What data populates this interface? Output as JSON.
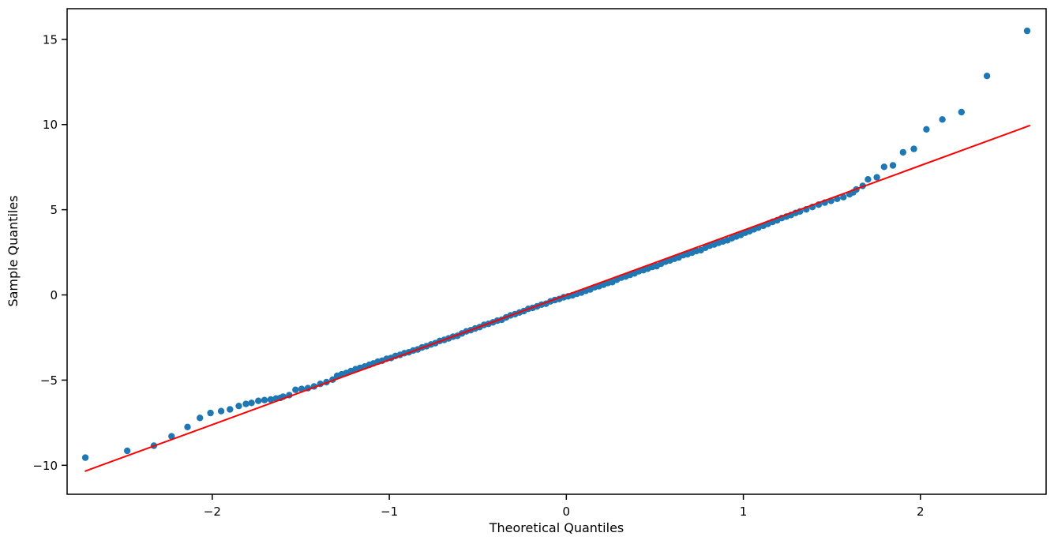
{
  "figure": {
    "background": "#ffffff",
    "border_color": "#000000",
    "text_color": "#000000"
  },
  "chart_data": {
    "type": "scatter",
    "title": "",
    "xlabel": "Theoretical Quantiles",
    "ylabel": "Sample Quantiles",
    "xlim": [
      -2.82,
      2.71
    ],
    "ylim": [
      -11.7,
      16.8
    ],
    "xticks": [
      -2,
      -1,
      0,
      1,
      2
    ],
    "yticks": [
      -10,
      -5,
      0,
      5,
      10,
      15
    ],
    "grid": false,
    "legend_position": "none",
    "series": [
      {
        "name": "sample-quantile-points",
        "kind": "scatter",
        "color": "#1f77b4",
        "marker_radius": 4.2,
        "points": [
          [
            -2.717,
            -9.55
          ],
          [
            -2.48,
            -9.15
          ],
          [
            -2.33,
            -8.85
          ],
          [
            -2.23,
            -8.3
          ],
          [
            -2.14,
            -7.75
          ],
          [
            -2.07,
            -7.22
          ],
          [
            -2.01,
            -6.93
          ],
          [
            -1.95,
            -6.82
          ],
          [
            -1.9,
            -6.72
          ],
          [
            -1.85,
            -6.52
          ],
          [
            -1.81,
            -6.4
          ],
          [
            -1.778,
            -6.34
          ],
          [
            -1.74,
            -6.22
          ],
          [
            -1.705,
            -6.17
          ],
          [
            -1.67,
            -6.14
          ],
          [
            -1.64,
            -6.08
          ],
          [
            -1.615,
            -6.04
          ],
          [
            -1.6,
            -5.97
          ],
          [
            -1.565,
            -5.88
          ],
          [
            -1.53,
            -5.57
          ],
          [
            -1.495,
            -5.52
          ],
          [
            -1.46,
            -5.47
          ],
          [
            -1.425,
            -5.37
          ],
          [
            -1.39,
            -5.22
          ],
          [
            -1.355,
            -5.12
          ],
          [
            -1.32,
            -4.97
          ],
          [
            -1.295,
            -4.75
          ],
          [
            -1.269,
            -4.66
          ],
          [
            -1.243,
            -4.58
          ],
          [
            -1.217,
            -4.47
          ],
          [
            -1.191,
            -4.36
          ],
          [
            -1.165,
            -4.28
          ],
          [
            -1.139,
            -4.2
          ],
          [
            -1.113,
            -4.1
          ],
          [
            -1.09,
            -4.02
          ],
          [
            -1.065,
            -3.92
          ],
          [
            -1.04,
            -3.86
          ],
          [
            -1.015,
            -3.75
          ],
          [
            -0.99,
            -3.7
          ],
          [
            -0.965,
            -3.58
          ],
          [
            -0.94,
            -3.52
          ],
          [
            -0.915,
            -3.42
          ],
          [
            -0.89,
            -3.37
          ],
          [
            -0.865,
            -3.26
          ],
          [
            -0.84,
            -3.2
          ],
          [
            -0.815,
            -3.08
          ],
          [
            -0.79,
            -3.01
          ],
          [
            -0.765,
            -2.91
          ],
          [
            -0.74,
            -2.83
          ],
          [
            -0.715,
            -2.7
          ],
          [
            -0.69,
            -2.64
          ],
          [
            -0.665,
            -2.55
          ],
          [
            -0.64,
            -2.45
          ],
          [
            -0.615,
            -2.4
          ],
          [
            -0.59,
            -2.26
          ],
          [
            -0.565,
            -2.14
          ],
          [
            -0.54,
            -2.07
          ],
          [
            -0.515,
            -1.97
          ],
          [
            -0.49,
            -1.89
          ],
          [
            -0.465,
            -1.76
          ],
          [
            -0.44,
            -1.7
          ],
          [
            -0.415,
            -1.61
          ],
          [
            -0.39,
            -1.51
          ],
          [
            -0.365,
            -1.46
          ],
          [
            -0.34,
            -1.32
          ],
          [
            -0.315,
            -1.2
          ],
          [
            -0.29,
            -1.13
          ],
          [
            -0.265,
            -1.03
          ],
          [
            -0.24,
            -0.95
          ],
          [
            -0.215,
            -0.82
          ],
          [
            -0.19,
            -0.76
          ],
          [
            -0.165,
            -0.67
          ],
          [
            -0.14,
            -0.57
          ],
          [
            -0.115,
            -0.52
          ],
          [
            -0.09,
            -0.38
          ],
          [
            -0.065,
            -0.3
          ],
          [
            -0.04,
            -0.24
          ],
          [
            -0.015,
            -0.14
          ],
          [
            0.01,
            -0.08
          ],
          [
            0.035,
            -0.02
          ],
          [
            0.06,
            0.07
          ],
          [
            0.085,
            0.14
          ],
          [
            0.11,
            0.24
          ],
          [
            0.135,
            0.32
          ],
          [
            0.16,
            0.45
          ],
          [
            0.185,
            0.51
          ],
          [
            0.21,
            0.6
          ],
          [
            0.235,
            0.7
          ],
          [
            0.26,
            0.75
          ],
          [
            0.285,
            0.89
          ],
          [
            0.31,
            1.01
          ],
          [
            0.335,
            1.08
          ],
          [
            0.36,
            1.18
          ],
          [
            0.385,
            1.26
          ],
          [
            0.41,
            1.39
          ],
          [
            0.435,
            1.45
          ],
          [
            0.46,
            1.54
          ],
          [
            0.485,
            1.64
          ],
          [
            0.51,
            1.69
          ],
          [
            0.535,
            1.83
          ],
          [
            0.56,
            1.95
          ],
          [
            0.585,
            2.02
          ],
          [
            0.61,
            2.12
          ],
          [
            0.635,
            2.2
          ],
          [
            0.66,
            2.33
          ],
          [
            0.685,
            2.39
          ],
          [
            0.71,
            2.48
          ],
          [
            0.735,
            2.58
          ],
          [
            0.76,
            2.63
          ],
          [
            0.785,
            2.77
          ],
          [
            0.81,
            2.89
          ],
          [
            0.835,
            2.96
          ],
          [
            0.86,
            3.06
          ],
          [
            0.885,
            3.14
          ],
          [
            0.91,
            3.21
          ],
          [
            0.935,
            3.33
          ],
          [
            0.96,
            3.43
          ],
          [
            0.985,
            3.52
          ],
          [
            1.01,
            3.65
          ],
          [
            1.035,
            3.74
          ],
          [
            1.06,
            3.85
          ],
          [
            1.085,
            3.95
          ],
          [
            1.113,
            4.06
          ],
          [
            1.139,
            4.17
          ],
          [
            1.165,
            4.29
          ],
          [
            1.191,
            4.38
          ],
          [
            1.217,
            4.51
          ],
          [
            1.243,
            4.6
          ],
          [
            1.269,
            4.69
          ],
          [
            1.295,
            4.81
          ],
          [
            1.32,
            4.9
          ],
          [
            1.355,
            5.02
          ],
          [
            1.39,
            5.16
          ],
          [
            1.425,
            5.3
          ],
          [
            1.46,
            5.42
          ],
          [
            1.495,
            5.52
          ],
          [
            1.53,
            5.64
          ],
          [
            1.565,
            5.74
          ],
          [
            1.6,
            5.91
          ],
          [
            1.62,
            6.02
          ],
          [
            1.638,
            6.19
          ],
          [
            1.674,
            6.4
          ],
          [
            1.704,
            6.78
          ],
          [
            1.754,
            6.9
          ],
          [
            1.795,
            7.52
          ],
          [
            1.845,
            7.6
          ],
          [
            1.902,
            8.37
          ],
          [
            1.963,
            8.57
          ],
          [
            2.034,
            9.72
          ],
          [
            2.124,
            10.3
          ],
          [
            2.232,
            10.73
          ],
          [
            2.376,
            12.85
          ],
          [
            2.603,
            15.5
          ]
        ]
      },
      {
        "name": "reference-line",
        "kind": "line",
        "color": "#ff0000",
        "line_width": 2,
        "points": [
          [
            -2.72,
            -10.35
          ],
          [
            2.62,
            9.95
          ]
        ]
      }
    ]
  }
}
